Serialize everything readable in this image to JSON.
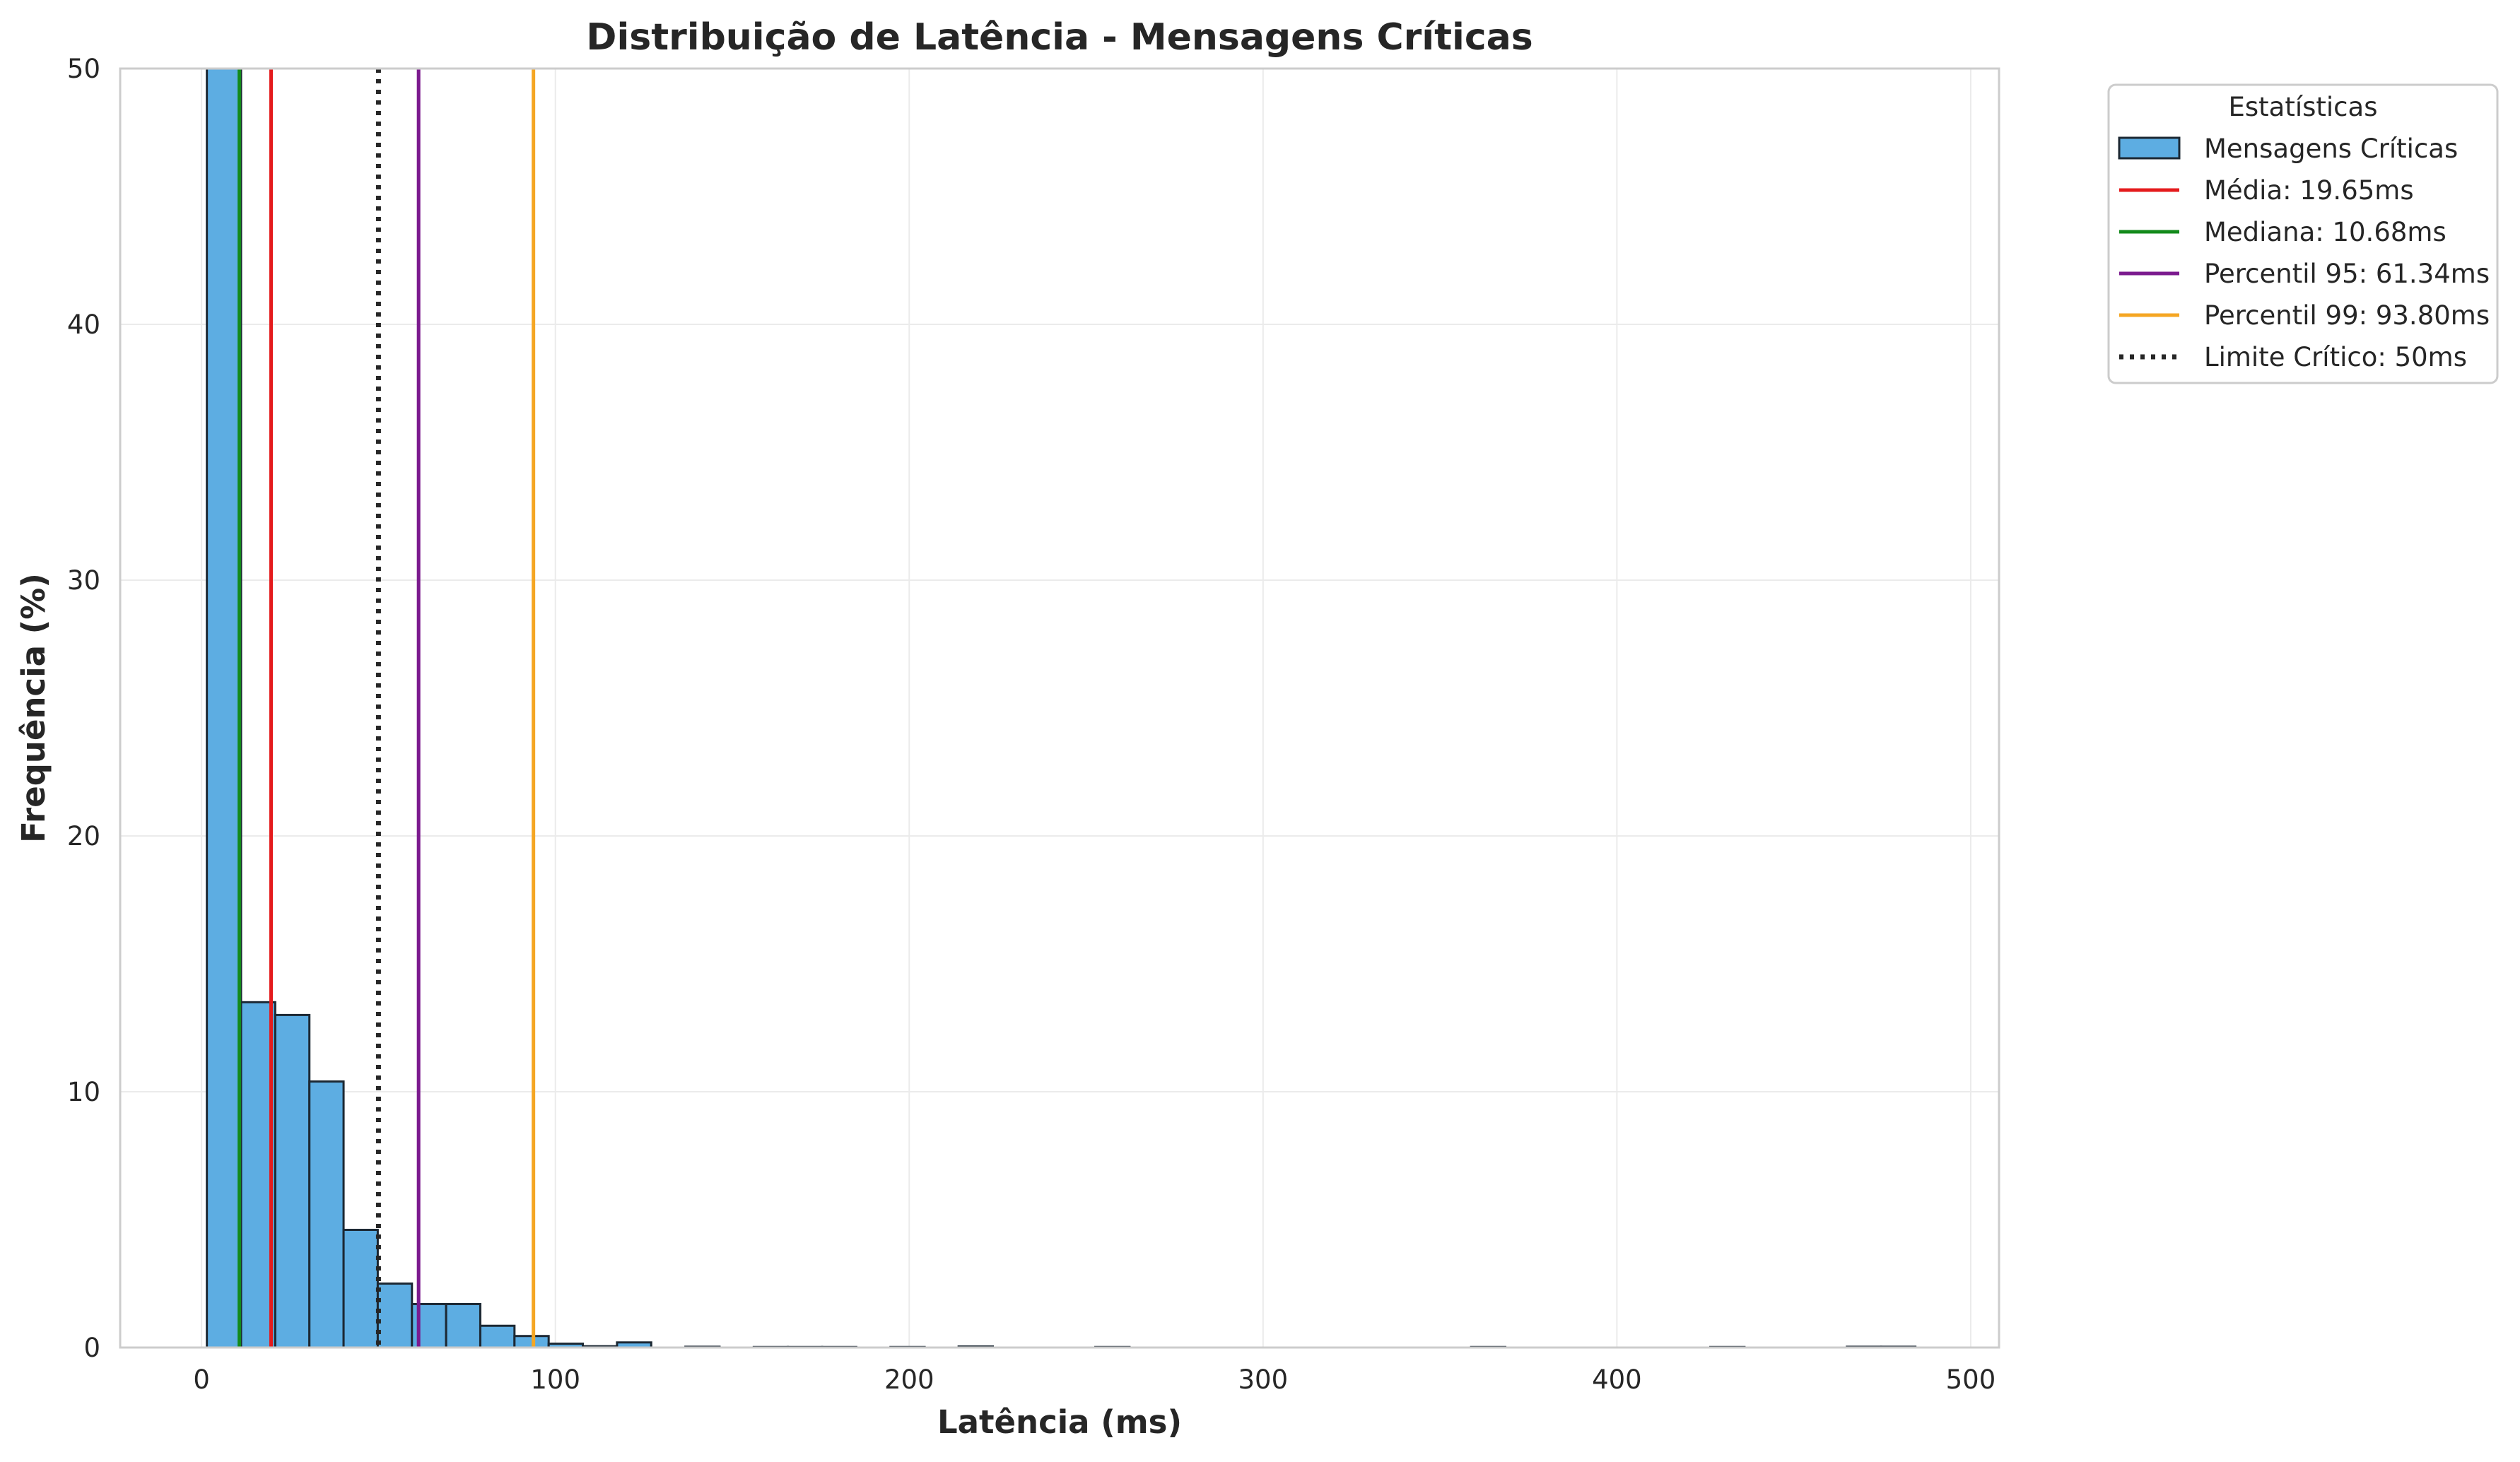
{
  "chart_data": {
    "type": "bar",
    "title": "Distribuição de Latência - Mensagens Críticas",
    "xlabel": "Latência (ms)",
    "ylabel": "Frequência (%)",
    "xlim": [
      -23,
      508
    ],
    "ylim": [
      0,
      50
    ],
    "xticks": [
      0,
      100,
      200,
      300,
      400,
      500
    ],
    "yticks": [
      0,
      10,
      20,
      30,
      40,
      50
    ],
    "grid": true,
    "legend_position": "outside-top-right",
    "legend_title": "Estatísticas",
    "histogram": {
      "name": "Mensagens Críticas",
      "color": "#5DADE2",
      "bin_width": 9.66,
      "bins": [
        {
          "start": 1.5,
          "value": 50
        },
        {
          "start": 11.16,
          "value": 13.5
        },
        {
          "start": 20.82,
          "value": 13.0
        },
        {
          "start": 30.48,
          "value": 10.4
        },
        {
          "start": 40.14,
          "value": 4.6
        },
        {
          "start": 49.8,
          "value": 2.5
        },
        {
          "start": 59.46,
          "value": 1.7
        },
        {
          "start": 69.12,
          "value": 1.7
        },
        {
          "start": 78.78,
          "value": 0.85
        },
        {
          "start": 88.44,
          "value": 0.45
        },
        {
          "start": 98.1,
          "value": 0.15
        },
        {
          "start": 107.76,
          "value": 0.05
        },
        {
          "start": 117.42,
          "value": 0.2
        },
        {
          "start": 136.74,
          "value": 0.03
        },
        {
          "start": 156.06,
          "value": 0.02
        },
        {
          "start": 165.72,
          "value": 0.02
        },
        {
          "start": 175.38,
          "value": 0.02
        },
        {
          "start": 194.7,
          "value": 0.02
        },
        {
          "start": 213.96,
          "value": 0.04
        },
        {
          "start": 252.6,
          "value": 0.02
        },
        {
          "start": 358.8,
          "value": 0.02
        },
        {
          "start": 426.4,
          "value": 0.02
        },
        {
          "start": 465.0,
          "value": 0.03
        },
        {
          "start": 474.7,
          "value": 0.03
        }
      ]
    },
    "lines": [
      {
        "label": "Média: 19.65ms",
        "x": 19.65,
        "color": "#E41A1C",
        "style": "solid"
      },
      {
        "label": "Mediana: 10.68ms",
        "x": 10.68,
        "color": "#138A1B",
        "style": "solid"
      },
      {
        "label": "Percentil 95: 61.34ms",
        "x": 61.34,
        "color": "#7B1A8E",
        "style": "solid"
      },
      {
        "label": "Percentil 99: 93.80ms",
        "x": 93.8,
        "color": "#F5A623",
        "style": "solid"
      },
      {
        "label": "Limite Crítico: 50ms",
        "x": 50,
        "color": "#262626",
        "style": "dotted"
      }
    ]
  }
}
